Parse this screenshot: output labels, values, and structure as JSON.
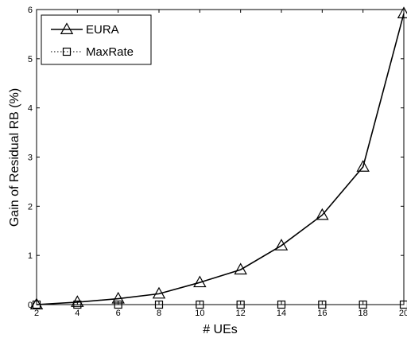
{
  "chart_data": {
    "type": "line",
    "xlabel": "# UEs",
    "ylabel": "Gain of Residual RB (%)",
    "x": [
      2,
      4,
      6,
      8,
      10,
      12,
      14,
      16,
      18,
      20
    ],
    "xlim": [
      2,
      20
    ],
    "ylim": [
      0,
      6
    ],
    "xticks": [
      "2",
      "4",
      "6",
      "8",
      "10",
      "12",
      "14",
      "16",
      "18",
      "20"
    ],
    "yticks": [
      "0",
      "1",
      "2",
      "3",
      "4",
      "5",
      "6"
    ],
    "grid": false,
    "legend_position": "top-left",
    "series": [
      {
        "name": "EURA",
        "values": [
          0.0,
          0.05,
          0.12,
          0.22,
          0.45,
          0.71,
          1.2,
          1.82,
          2.8,
          5.92
        ],
        "marker": "triangle",
        "line_style": "solid",
        "color": "#000000"
      },
      {
        "name": "MaxRate",
        "values": [
          0,
          0,
          0,
          0,
          0,
          0,
          0,
          0,
          0,
          0
        ],
        "marker": "square",
        "line_style": "dotted",
        "color": "#000000"
      }
    ]
  }
}
